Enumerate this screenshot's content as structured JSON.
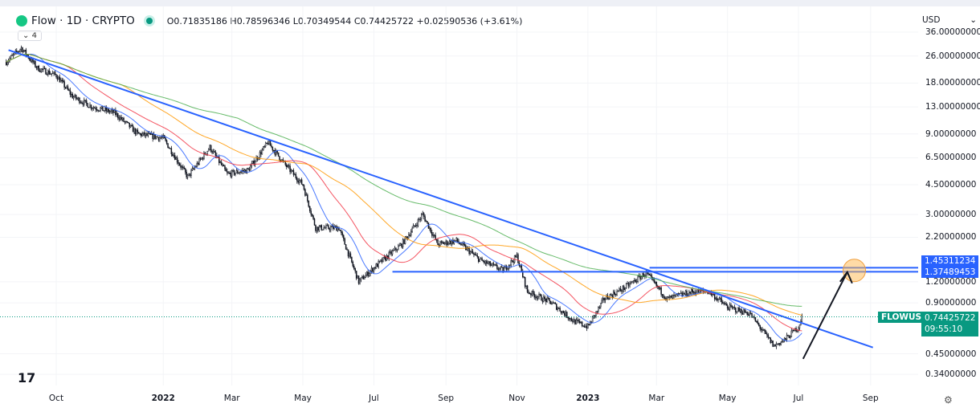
{
  "header": {
    "symbol": "Flow · 1D · CRYPTO",
    "open": "O0.71835186",
    "high": "H0.78596346",
    "low": "L0.70349544",
    "close": "C0.74425722",
    "change": "+0.02590536 (+3.61%)",
    "indicators_count": "4"
  },
  "axis": {
    "currency": "USD",
    "ticks": [
      "36.00000000",
      "26.00000000",
      "18.00000000",
      "13.00000000",
      "9.00000000",
      "6.50000000",
      "4.50000000",
      "3.00000000",
      "2.20000000",
      "1.20000000",
      "0.90000000",
      "0.45000000",
      "0.34000000"
    ],
    "tick_values": [
      36,
      26,
      18,
      13,
      9,
      6.5,
      4.5,
      3,
      2.2,
      1.2,
      0.9,
      0.45,
      0.34
    ],
    "labels": {
      "level1": "1.45311234",
      "level2": "1.37489453",
      "ticker": "FLOWUSD",
      "price": "0.74425722",
      "countdown": "09:55:10"
    }
  },
  "time_axis": [
    {
      "label": "Oct",
      "date": "2021-10-01"
    },
    {
      "label": "2022",
      "date": "2022-01-01"
    },
    {
      "label": "Mar",
      "date": "2022-03-01"
    },
    {
      "label": "May",
      "date": "2022-05-01"
    },
    {
      "label": "Jul",
      "date": "2022-07-01"
    },
    {
      "label": "Sep",
      "date": "2022-09-01"
    },
    {
      "label": "Nov",
      "date": "2022-11-01"
    },
    {
      "label": "2023",
      "date": "2023-01-01"
    },
    {
      "label": "Mar",
      "date": "2023-03-01"
    },
    {
      "label": "May",
      "date": "2023-05-01"
    },
    {
      "label": "Jul",
      "date": "2023-07-01"
    },
    {
      "label": "Sep",
      "date": "2023-09-01"
    }
  ],
  "colors": {
    "up": "#089981",
    "trend": "#2962ff",
    "ma20": "#2962ff",
    "ma50": "#f23645",
    "ma100": "#ff9800",
    "ma200": "#4caf50",
    "level": "#2962ff"
  },
  "price_path": [
    [
      "2021-08-19",
      24
    ],
    [
      "2021-09-01",
      29
    ],
    [
      "2021-09-15",
      22
    ],
    [
      "2021-10-01",
      20
    ],
    [
      "2021-10-15",
      15
    ],
    [
      "2021-11-01",
      13
    ],
    [
      "2021-11-20",
      12
    ],
    [
      "2021-12-10",
      9
    ],
    [
      "2022-01-01",
      8.5
    ],
    [
      "2022-01-22",
      5
    ],
    [
      "2022-02-10",
      7.5
    ],
    [
      "2022-02-25",
      5.2
    ],
    [
      "2022-03-15",
      5.5
    ],
    [
      "2022-04-01",
      8
    ],
    [
      "2022-04-15",
      6
    ],
    [
      "2022-05-01",
      4.5
    ],
    [
      "2022-05-12",
      2.5
    ],
    [
      "2022-06-01",
      2.5
    ],
    [
      "2022-06-18",
      1.2
    ],
    [
      "2022-07-01",
      1.45
    ],
    [
      "2022-07-25",
      2.0
    ],
    [
      "2022-08-12",
      3.0
    ],
    [
      "2022-08-25",
      2.0
    ],
    [
      "2022-09-10",
      2.1
    ],
    [
      "2022-10-01",
      1.6
    ],
    [
      "2022-10-20",
      1.4
    ],
    [
      "2022-11-01",
      1.7
    ],
    [
      "2022-11-10",
      1.05
    ],
    [
      "2022-12-01",
      0.9
    ],
    [
      "2022-12-20",
      0.7
    ],
    [
      "2023-01-01",
      0.65
    ],
    [
      "2023-01-15",
      0.95
    ],
    [
      "2023-02-01",
      1.1
    ],
    [
      "2023-02-20",
      1.35
    ],
    [
      "2023-03-10",
      0.95
    ],
    [
      "2023-04-01",
      1.05
    ],
    [
      "2023-04-15",
      1.05
    ],
    [
      "2023-05-01",
      0.85
    ],
    [
      "2023-05-20",
      0.78
    ],
    [
      "2023-06-10",
      0.5
    ],
    [
      "2023-06-20",
      0.55
    ],
    [
      "2023-07-01",
      0.65
    ],
    [
      "2023-07-04",
      0.744
    ]
  ],
  "drawings": {
    "trendline": [
      [
        "2021-08-21",
        28.2
      ],
      [
        "2023-09-03",
        0.49
      ]
    ],
    "level1": {
      "from": "2023-02-23",
      "price": 1.45311234
    },
    "level2": {
      "from": "2022-07-17",
      "price": 1.37489453
    },
    "arrow": [
      [
        "2023-07-05",
        0.42
      ],
      [
        "2023-08-12",
        1.37
      ]
    ],
    "circle": [
      "2023-08-18",
      1.4
    ]
  }
}
